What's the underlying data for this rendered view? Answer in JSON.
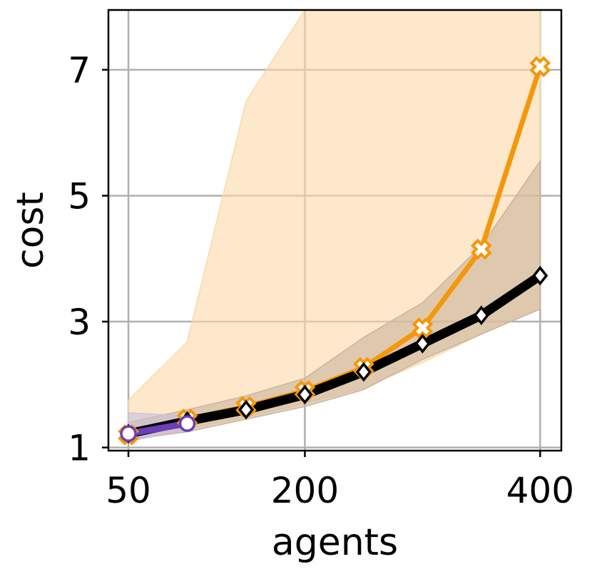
{
  "chart_data": {
    "type": "line",
    "title": "",
    "xlabel": "agents",
    "ylabel": "cost",
    "xlim": [
      33,
      418
    ],
    "ylim": [
      0.95,
      7.95
    ],
    "xticks": [
      50,
      200,
      400
    ],
    "xtick_labels": [
      "50",
      "200",
      "400"
    ],
    "yticks": [
      1,
      3,
      5,
      7
    ],
    "ytick_labels": [
      "1",
      "3",
      "5",
      "7"
    ],
    "grid": true,
    "legend": "none",
    "series": [
      {
        "color": "#f5970a",
        "marker": "x",
        "x": [
          50,
          100,
          150,
          200,
          250,
          300,
          350,
          400
        ],
        "y": [
          1.2,
          1.45,
          1.65,
          1.9,
          2.27,
          2.9,
          4.15,
          7.05
        ],
        "band_low": [
          1.1,
          1.3,
          1.48,
          1.7,
          1.95,
          2.35,
          2.8,
          3.2
        ],
        "band_high": [
          1.75,
          2.68,
          6.5,
          9.0,
          9.0,
          9.0,
          9.0,
          9.0
        ],
        "band_color": "#fbd9a8"
      },
      {
        "color": "#000000",
        "marker": "diamond",
        "x": [
          50,
          100,
          150,
          200,
          250,
          300,
          350,
          400
        ],
        "y": [
          1.22,
          1.42,
          1.6,
          1.84,
          2.2,
          2.65,
          3.1,
          3.73
        ],
        "band_low": [
          1.12,
          1.25,
          1.45,
          1.65,
          1.92,
          2.4,
          2.8,
          3.2
        ],
        "band_high": [
          1.4,
          1.6,
          1.82,
          2.1,
          2.75,
          3.3,
          4.2,
          5.55
        ],
        "band_color": "#c9b49c"
      },
      {
        "color": "#6a3fb8",
        "marker": "circle",
        "x": [
          50,
          100
        ],
        "y": [
          1.22,
          1.38
        ],
        "band_low": [
          1.1,
          1.28
        ],
        "band_high": [
          1.55,
          1.5
        ],
        "band_color": "#c9c2dd"
      }
    ]
  }
}
